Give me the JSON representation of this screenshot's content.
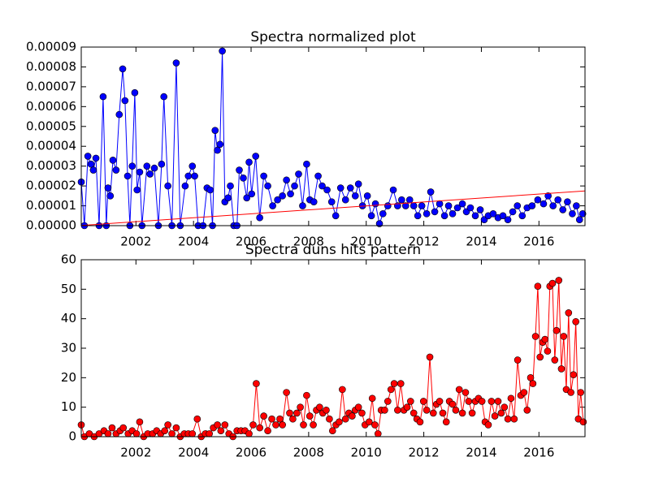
{
  "chart_data": [
    {
      "type": "line",
      "title": "Spectra normalized plot",
      "x": [
        2000.1,
        2000.21,
        2000.33,
        2000.44,
        2000.52,
        2000.61,
        2000.72,
        2000.86,
        2000.97,
        2001.03,
        2001.11,
        2001.2,
        2001.31,
        2001.42,
        2001.54,
        2001.62,
        2001.71,
        2001.79,
        2001.87,
        2001.96,
        2002.04,
        2002.13,
        2002.21,
        2002.38,
        2002.49,
        2002.64,
        2002.78,
        2002.89,
        2002.97,
        2003.11,
        2003.25,
        2003.4,
        2003.54,
        2003.71,
        2003.82,
        2003.96,
        2004.04,
        2004.16,
        2004.33,
        2004.47,
        2004.58,
        2004.66,
        2004.75,
        2004.83,
        2004.92,
        2005.0,
        2005.09,
        2005.2,
        2005.28,
        2005.4,
        2005.51,
        2005.59,
        2005.73,
        2005.85,
        2005.93,
        2006.02,
        2006.16,
        2006.3,
        2006.44,
        2006.58,
        2006.75,
        2006.92,
        2007.09,
        2007.23,
        2007.37,
        2007.51,
        2007.65,
        2007.79,
        2007.93,
        2008.04,
        2008.18,
        2008.33,
        2008.47,
        2008.64,
        2008.8,
        2008.94,
        2009.11,
        2009.28,
        2009.45,
        2009.62,
        2009.73,
        2009.87,
        2010.04,
        2010.18,
        2010.32,
        2010.46,
        2010.58,
        2010.75,
        2010.94,
        2011.09,
        2011.23,
        2011.37,
        2011.51,
        2011.65,
        2011.79,
        2011.93,
        2012.1,
        2012.24,
        2012.38,
        2012.55,
        2012.72,
        2012.86,
        2013.0,
        2013.17,
        2013.34,
        2013.48,
        2013.62,
        2013.79,
        2013.96,
        2014.1,
        2014.24,
        2014.41,
        2014.58,
        2014.75,
        2014.92,
        2015.09,
        2015.25,
        2015.42,
        2015.59,
        2015.76,
        2015.96,
        2016.16,
        2016.32,
        2016.49,
        2016.66,
        2016.83,
        2016.99,
        2017.16,
        2017.3,
        2017.41,
        2017.52
      ],
      "series": [
        {
          "color": "#0000ff",
          "values": [
            2.2e-05,
            0,
            3.5e-05,
            3.1e-05,
            2.8e-05,
            3.4e-05,
            0,
            6.5e-05,
            0,
            1.9e-05,
            1.5e-05,
            3.3e-05,
            2.8e-05,
            5.6e-05,
            7.9e-05,
            6.3e-05,
            2.5e-05,
            0,
            3e-05,
            6.7e-05,
            1.8e-05,
            2.7e-05,
            0,
            3e-05,
            2.6e-05,
            2.9e-05,
            0,
            3.1e-05,
            6.5e-05,
            2e-05,
            0,
            8.2e-05,
            0,
            2e-05,
            2.5e-05,
            3e-05,
            2.5e-05,
            0,
            0,
            1.9e-05,
            1.8e-05,
            0,
            4.8e-05,
            3.8e-05,
            4.1e-05,
            8.8e-05,
            1.2e-05,
            1.4e-05,
            2e-05,
            0,
            0,
            2.8e-05,
            2.4e-05,
            1.4e-05,
            3.2e-05,
            1.6e-05,
            3.5e-05,
            4e-06,
            2.5e-05,
            2e-05,
            1e-05,
            1.3e-05,
            1.5e-05,
            2.3e-05,
            1.6e-05,
            2e-05,
            2.6e-05,
            1e-05,
            3.1e-05,
            1.3e-05,
            1.2e-05,
            2.5e-05,
            2e-05,
            1.8e-05,
            1.2e-05,
            5e-06,
            1.9e-05,
            1.3e-05,
            1.9e-05,
            1.5e-05,
            2.1e-05,
            1e-05,
            1.5e-05,
            5e-06,
            1.1e-05,
            1e-06,
            6e-06,
            1e-05,
            1.8e-05,
            1e-05,
            1.3e-05,
            1e-05,
            1.3e-05,
            1e-05,
            5e-06,
            1e-05,
            6e-06,
            1.7e-05,
            7e-06,
            1.1e-05,
            5e-06,
            1e-05,
            6e-06,
            9e-06,
            1.1e-05,
            7e-06,
            9e-06,
            5e-06,
            8e-06,
            3e-06,
            5e-06,
            6e-06,
            4e-06,
            5e-06,
            3e-06,
            7e-06,
            1e-05,
            5e-06,
            9e-06,
            1e-05,
            1.3e-05,
            1.1e-05,
            1.5e-05,
            1e-05,
            1.3e-05,
            8e-06,
            1.2e-05,
            6e-06,
            1e-05,
            3e-06,
            6e-06
          ]
        }
      ],
      "trend": {
        "color": "#ff0000",
        "x": [
          2000.1,
          2017.6
        ],
        "values": [
          1e-07,
          1.75e-05
        ]
      },
      "xlim": [
        2000.1,
        2017.6
      ],
      "xticks": [
        2002,
        2004,
        2006,
        2008,
        2010,
        2012,
        2014,
        2016
      ],
      "ylim": [
        0,
        9e-05
      ],
      "yticks": [
        {
          "value": 0,
          "label": "0.00000"
        },
        {
          "value": 1e-05,
          "label": "0.00001"
        },
        {
          "value": 2e-05,
          "label": "0.00002"
        },
        {
          "value": 3e-05,
          "label": "0.00003"
        },
        {
          "value": 4e-05,
          "label": "0.00004"
        },
        {
          "value": 5e-05,
          "label": "0.00005"
        },
        {
          "value": 6e-05,
          "label": "0.00006"
        },
        {
          "value": 7e-05,
          "label": "0.00007"
        },
        {
          "value": 8e-05,
          "label": "0.00008"
        },
        {
          "value": 9e-05,
          "label": "0.00009"
        }
      ]
    },
    {
      "type": "line",
      "title": "Spectra duns hits pattern",
      "x": [
        2000.1,
        2000.21,
        2000.38,
        2000.55,
        2000.72,
        2000.89,
        2001.03,
        2001.17,
        2001.31,
        2001.45,
        2001.56,
        2001.73,
        2001.87,
        2002.02,
        2002.13,
        2002.27,
        2002.41,
        2002.58,
        2002.72,
        2002.86,
        2003.0,
        2003.11,
        2003.25,
        2003.4,
        2003.54,
        2003.68,
        2003.82,
        2003.96,
        2004.13,
        2004.27,
        2004.41,
        2004.55,
        2004.69,
        2004.83,
        2004.95,
        2005.09,
        2005.23,
        2005.37,
        2005.51,
        2005.65,
        2005.79,
        2005.93,
        2006.07,
        2006.18,
        2006.3,
        2006.44,
        2006.58,
        2006.72,
        2006.86,
        2007.0,
        2007.09,
        2007.23,
        2007.34,
        2007.45,
        2007.59,
        2007.71,
        2007.82,
        2007.93,
        2008.04,
        2008.16,
        2008.27,
        2008.38,
        2008.49,
        2008.61,
        2008.72,
        2008.83,
        2008.95,
        2009.06,
        2009.17,
        2009.28,
        2009.4,
        2009.51,
        2009.62,
        2009.73,
        2009.85,
        2009.96,
        2010.1,
        2010.21,
        2010.3,
        2010.41,
        2010.52,
        2010.64,
        2010.75,
        2010.86,
        2010.97,
        2011.09,
        2011.2,
        2011.31,
        2011.42,
        2011.54,
        2011.65,
        2011.76,
        2011.87,
        2011.99,
        2012.1,
        2012.21,
        2012.33,
        2012.44,
        2012.55,
        2012.66,
        2012.78,
        2012.89,
        2013.0,
        2013.11,
        2013.23,
        2013.34,
        2013.45,
        2013.56,
        2013.68,
        2013.79,
        2013.9,
        2014.02,
        2014.13,
        2014.24,
        2014.35,
        2014.47,
        2014.58,
        2014.69,
        2014.8,
        2014.92,
        2015.03,
        2015.14,
        2015.26,
        2015.37,
        2015.48,
        2015.59,
        2015.71,
        2015.79,
        2015.88,
        2015.96,
        2016.04,
        2016.13,
        2016.21,
        2016.3,
        2016.38,
        2016.47,
        2016.55,
        2016.61,
        2016.69,
        2016.78,
        2016.86,
        2016.95,
        2017.03,
        2017.11,
        2017.2,
        2017.28,
        2017.37,
        2017.45,
        2017.54
      ],
      "series": [
        {
          "color": "#ff0000",
          "values": [
            4,
            0,
            1,
            0,
            1,
            2,
            1,
            3,
            1,
            2,
            3,
            1,
            2,
            1,
            5,
            0,
            1,
            1,
            2,
            1,
            2,
            4,
            1,
            3,
            0,
            1,
            1,
            1,
            6,
            0,
            1,
            1,
            3,
            4,
            2,
            4,
            1,
            0,
            2,
            2,
            2,
            1,
            4,
            18,
            3,
            7,
            2,
            6,
            4,
            6,
            4,
            15,
            8,
            6,
            8,
            10,
            4,
            14,
            7,
            4,
            9,
            10,
            8,
            9,
            6,
            2,
            4,
            5,
            16,
            6,
            8,
            7,
            9,
            10,
            8,
            4,
            5,
            13,
            4,
            1,
            9,
            9,
            12,
            16,
            18,
            9,
            18,
            9,
            10,
            12,
            8,
            6,
            5,
            12,
            9,
            27,
            8,
            11,
            12,
            8,
            5,
            12,
            11,
            9,
            16,
            8,
            15,
            12,
            8,
            12,
            13,
            12,
            5,
            4,
            12,
            7,
            12,
            8,
            10,
            6,
            13,
            6,
            26,
            14,
            15,
            9,
            20,
            18,
            34,
            51,
            27,
            32,
            33,
            29,
            51,
            52,
            26,
            36,
            53,
            23,
            34,
            16,
            42,
            15,
            21,
            39,
            6,
            15,
            5
          ]
        }
      ],
      "xlim": [
        2000.1,
        2017.6
      ],
      "xticks": [
        2002,
        2004,
        2006,
        2008,
        2010,
        2012,
        2014,
        2016
      ],
      "ylim": [
        0,
        60
      ],
      "yticks": [
        0,
        10,
        20,
        30,
        40,
        50,
        60
      ]
    }
  ]
}
